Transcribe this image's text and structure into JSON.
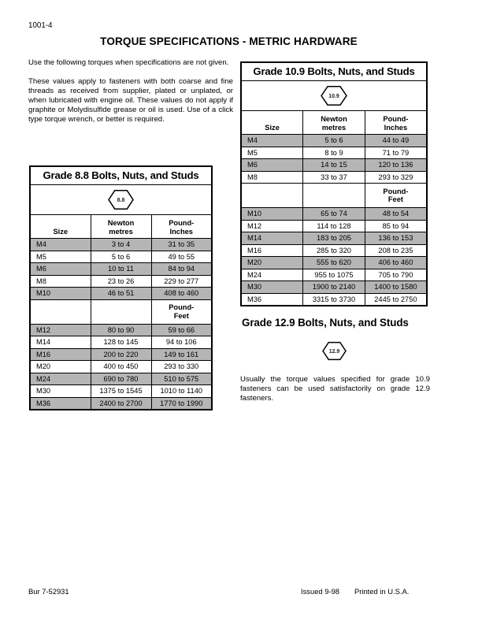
{
  "page": {
    "page_number": "1001-4",
    "title": "TORQUE SPECIFICATIONS - METRIC HARDWARE"
  },
  "intro": {
    "paragraphs": [
      "Use the following torques when specifications are not given.",
      "These values apply to fasteners with both coarse and fine threads as received from supplier, plated or unplated, or when lubricated with engine oil. These values do not apply if graphite or Molydisulfide grease or oil is used. Use of a click type torque wrench, or better is required."
    ]
  },
  "tables": [
    {
      "title": "Grade 8.8 Bolts, Nuts, and Studs",
      "grade_marking": "8.8",
      "columns": [
        "Size",
        "Newton\nmetres",
        "Pound-\nInches"
      ],
      "rows": [
        {
          "size": "M4",
          "newton_metres": "3 to 4",
          "imperial": "31 to 35",
          "shaded": true
        },
        {
          "size": "M5",
          "newton_metres": "5 to 6",
          "imperial": "49 to 55",
          "shaded": false
        },
        {
          "size": "M6",
          "newton_metres": "10 to 11",
          "imperial": "84 to 94",
          "shaded": true
        },
        {
          "size": "M8",
          "newton_metres": "23 to 26",
          "imperial": "229 to 277",
          "shaded": false
        },
        {
          "size": "M10",
          "newton_metres": "46 to 51",
          "imperial": "408 to 460",
          "shaded": true
        },
        {
          "type": "unit-subheader",
          "label": "Pound-\nFeet"
        },
        {
          "size": "M12",
          "newton_metres": "80 to 90",
          "imperial": "59 to 66",
          "shaded": true
        },
        {
          "size": "M14",
          "newton_metres": "128 to 145",
          "imperial": "94 to 106",
          "shaded": false
        },
        {
          "size": "M16",
          "newton_metres": "200 to 220",
          "imperial": "149 to 161",
          "shaded": true
        },
        {
          "size": "M20",
          "newton_metres": "400 to 450",
          "imperial": "293 to 330",
          "shaded": false
        },
        {
          "size": "M24",
          "newton_metres": "690 to 780",
          "imperial": "510 to 575",
          "shaded": true
        },
        {
          "size": "M30",
          "newton_metres": "1375 to 1545",
          "imperial": "1010 to 1140",
          "shaded": false
        },
        {
          "size": "M36",
          "newton_metres": "2400 to 2700",
          "imperial": "1770 to 1990",
          "shaded": true
        }
      ]
    },
    {
      "title": "Grade 10.9 Bolts, Nuts, and Studs",
      "grade_marking": "10.9",
      "columns": [
        "Size",
        "Newton\nmetres",
        "Pound-\nInches"
      ],
      "rows": [
        {
          "size": "M4",
          "newton_metres": "5 to 6",
          "imperial": "44 to 49",
          "shaded": true
        },
        {
          "size": "M5",
          "newton_metres": "8 to 9",
          "imperial": "71 to 79",
          "shaded": false
        },
        {
          "size": "M6",
          "newton_metres": "14 to 15",
          "imperial": "120 to 136",
          "shaded": true
        },
        {
          "size": "M8",
          "newton_metres": "33 to 37",
          "imperial": "293 to 329",
          "shaded": false
        },
        {
          "type": "unit-subheader",
          "label": "Pound-\nFeet"
        },
        {
          "size": "M10",
          "newton_metres": "65 to 74",
          "imperial": "48 to 54",
          "shaded": true
        },
        {
          "size": "M12",
          "newton_metres": "114 to 128",
          "imperial": "85 to 94",
          "shaded": false
        },
        {
          "size": "M14",
          "newton_metres": "183 to 205",
          "imperial": "136 to 153",
          "shaded": true
        },
        {
          "size": "M16",
          "newton_metres": "285 to 320",
          "imperial": "208 to 235",
          "shaded": false
        },
        {
          "size": "M20",
          "newton_metres": "555 to 620",
          "imperial": "406 to 460",
          "shaded": true
        },
        {
          "size": "M24",
          "newton_metres": "955 to 1075",
          "imperial": "705 to 790",
          "shaded": false
        },
        {
          "size": "M30",
          "newton_metres": "1900 to 2140",
          "imperial": "1400 to 1580",
          "shaded": true
        },
        {
          "size": "M36",
          "newton_metres": "3315 to 3730",
          "imperial": "2445 to 2750",
          "shaded": false
        }
      ]
    }
  ],
  "grade_12_9": {
    "title": "Grade 12.9 Bolts, Nuts, and Studs",
    "grade_marking": "12.9",
    "note": "Usually the torque values specified for grade 10.9 fasteners can be used satisfactorily on grade 12.9 fasteners."
  },
  "footer": {
    "document_number": "Bur 7-52931",
    "issued": "Issued 9-98",
    "printed": "Printed in U.S.A."
  },
  "colors": {
    "row_shade": "#b5b5b5",
    "border": "#000000"
  }
}
